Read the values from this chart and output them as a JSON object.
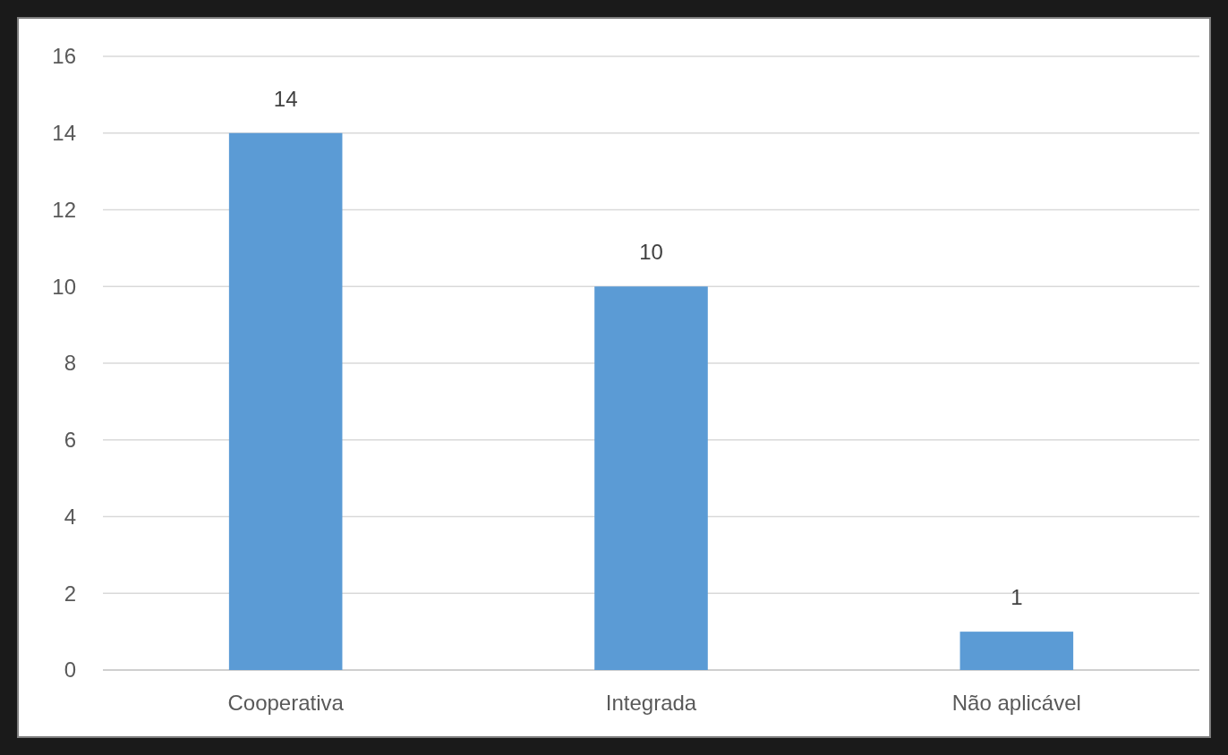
{
  "chart_data": {
    "type": "bar",
    "categories": [
      "Cooperativa",
      "Integrada",
      "Não aplicável"
    ],
    "values": [
      14,
      10,
      1
    ],
    "color": "#5b9bd5",
    "ylim": [
      0,
      16
    ],
    "yticks": [
      0,
      2,
      4,
      6,
      8,
      10,
      12,
      14,
      16
    ],
    "grid": "y",
    "data_labels": true
  }
}
